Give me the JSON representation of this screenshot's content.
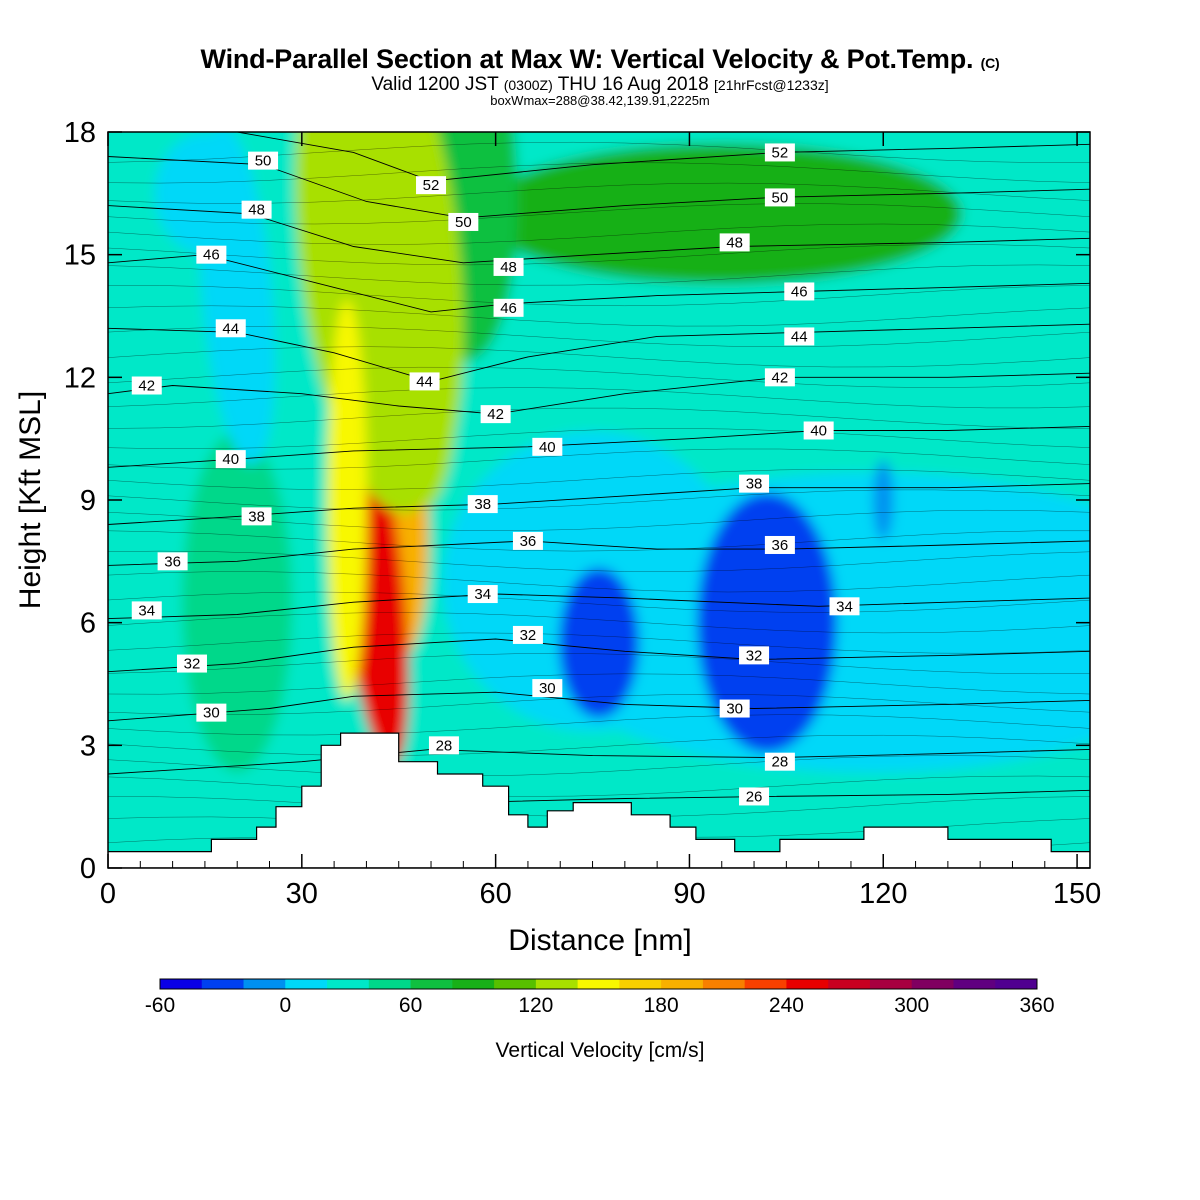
{
  "header": {
    "title": "Wind-Parallel Section at Max W: Vertical Velocity & Pot.Temp.",
    "copyright": "(C)",
    "valid_prefix": "Valid 1200 JST",
    "valid_z": "(0300Z)",
    "valid_date": "THU 16 Aug 2018",
    "valid_fcst": "[21hrFcst@1233z]",
    "box_info": "boxWmax=288@38.42,139.91,2225m"
  },
  "chart_data": {
    "type": "heatmap",
    "xlabel": "Distance [nm]",
    "ylabel": "Height [Kft MSL]",
    "xlim": [
      0,
      152
    ],
    "ylim": [
      0,
      18
    ],
    "x_ticks": [
      0,
      30,
      60,
      90,
      120,
      150
    ],
    "y_ticks": [
      0,
      3,
      6,
      9,
      12,
      15,
      18
    ],
    "colorbar": {
      "label": "Vertical Velocity [cm/s]",
      "min": -60,
      "max": 360,
      "step": 20,
      "tick_labels": [
        "-60",
        "0",
        "60",
        "120",
        "180",
        "240",
        "300",
        "360"
      ],
      "tick_values": [
        -60,
        0,
        60,
        120,
        180,
        240,
        300,
        360
      ],
      "colors": [
        "#0a00e6",
        "#0040f0",
        "#0090f0",
        "#00d8f8",
        "#00e8c8",
        "#00d88a",
        "#10c040",
        "#18b018",
        "#58c000",
        "#a8e000",
        "#f8f800",
        "#f8d000",
        "#f8b000",
        "#f88000",
        "#f84000",
        "#e80000",
        "#c80020",
        "#a80040",
        "#800060",
        "#600080",
        "#500090"
      ]
    },
    "terrain": [
      [
        0,
        0.4
      ],
      [
        16,
        0.4
      ],
      [
        16,
        0.7
      ],
      [
        23,
        0.7
      ],
      [
        23,
        1.0
      ],
      [
        26,
        1.0
      ],
      [
        26,
        1.5
      ],
      [
        30,
        1.5
      ],
      [
        30,
        2.0
      ],
      [
        33,
        2.0
      ],
      [
        33,
        3.0
      ],
      [
        36,
        3.0
      ],
      [
        36,
        3.3
      ],
      [
        45,
        3.3
      ],
      [
        45,
        2.6
      ],
      [
        51,
        2.6
      ],
      [
        51,
        2.3
      ],
      [
        58,
        2.3
      ],
      [
        58,
        2.0
      ],
      [
        62,
        2.0
      ],
      [
        62,
        1.3
      ],
      [
        65,
        1.3
      ],
      [
        65,
        1.0
      ],
      [
        68,
        1.0
      ],
      [
        68,
        1.4
      ],
      [
        72,
        1.4
      ],
      [
        72,
        1.6
      ],
      [
        81,
        1.6
      ],
      [
        81,
        1.3
      ],
      [
        87,
        1.3
      ],
      [
        87,
        1.0
      ],
      [
        91,
        1.0
      ],
      [
        91,
        0.7
      ],
      [
        97,
        0.7
      ],
      [
        97,
        0.4
      ],
      [
        104,
        0.4
      ],
      [
        104,
        0.7
      ],
      [
        117,
        0.7
      ],
      [
        117,
        1.0
      ],
      [
        130,
        1.0
      ],
      [
        130,
        0.7
      ],
      [
        146,
        0.7
      ],
      [
        146,
        0.4
      ],
      [
        152,
        0.4
      ]
    ],
    "theta_contours": [
      {
        "level": "26",
        "points": [
          [
            55,
            1.6
          ],
          [
            80,
            1.7
          ],
          [
            103,
            1.75
          ],
          [
            130,
            1.8
          ],
          [
            152,
            1.9
          ]
        ],
        "label_at": [
          100,
          1.75
        ]
      },
      {
        "level": "28",
        "points": [
          [
            0,
            2.3
          ],
          [
            30,
            2.6
          ],
          [
            50,
            2.9
          ],
          [
            75,
            2.75
          ],
          [
            103,
            2.7
          ],
          [
            130,
            2.8
          ],
          [
            152,
            2.9
          ]
        ],
        "label_at": [
          52,
          3.0
        ]
      },
      {
        "level": "30",
        "points": [
          [
            0,
            3.6
          ],
          [
            25,
            3.9
          ],
          [
            38,
            4.2
          ],
          [
            60,
            4.3
          ],
          [
            80,
            4.0
          ],
          [
            100,
            3.9
          ],
          [
            130,
            4.0
          ],
          [
            152,
            4.1
          ]
        ],
        "label_at": [
          68,
          4.4
        ]
      },
      {
        "level": "32",
        "points": [
          [
            0,
            4.8
          ],
          [
            20,
            5.0
          ],
          [
            38,
            5.4
          ],
          [
            60,
            5.6
          ],
          [
            80,
            5.3
          ],
          [
            100,
            5.1
          ],
          [
            130,
            5.2
          ],
          [
            152,
            5.3
          ]
        ],
        "label_at": [
          65,
          5.7
        ]
      },
      {
        "level": "34",
        "points": [
          [
            0,
            6.1
          ],
          [
            20,
            6.2
          ],
          [
            38,
            6.5
          ],
          [
            60,
            6.7
          ],
          [
            80,
            6.6
          ],
          [
            110,
            6.4
          ],
          [
            130,
            6.5
          ],
          [
            152,
            6.6
          ]
        ],
        "label_at": [
          58,
          6.7
        ]
      },
      {
        "level": "36",
        "points": [
          [
            0,
            7.4
          ],
          [
            20,
            7.5
          ],
          [
            38,
            7.8
          ],
          [
            65,
            8.0
          ],
          [
            85,
            7.8
          ],
          [
            105,
            7.8
          ],
          [
            130,
            7.9
          ],
          [
            152,
            8.0
          ]
        ],
        "label_at": [
          65,
          8.0
        ]
      },
      {
        "level": "38",
        "points": [
          [
            0,
            8.4
          ],
          [
            20,
            8.6
          ],
          [
            38,
            8.8
          ],
          [
            60,
            8.9
          ],
          [
            80,
            9.1
          ],
          [
            100,
            9.3
          ],
          [
            130,
            9.3
          ],
          [
            152,
            9.4
          ]
        ],
        "label_at": [
          58,
          8.9
        ]
      },
      {
        "level": "40",
        "points": [
          [
            0,
            9.8
          ],
          [
            20,
            10.0
          ],
          [
            38,
            10.2
          ],
          [
            65,
            10.3
          ],
          [
            90,
            10.5
          ],
          [
            110,
            10.7
          ],
          [
            130,
            10.7
          ],
          [
            152,
            10.8
          ]
        ],
        "label_at": [
          68,
          10.3
        ]
      },
      {
        "level": "42",
        "points": [
          [
            0,
            11.6
          ],
          [
            10,
            11.8
          ],
          [
            30,
            11.6
          ],
          [
            45,
            11.3
          ],
          [
            60,
            11.1
          ],
          [
            80,
            11.6
          ],
          [
            104,
            12.0
          ],
          [
            130,
            12.0
          ],
          [
            152,
            12.1
          ]
        ],
        "label_at": [
          60,
          11.1
        ]
      },
      {
        "level": "44",
        "points": [
          [
            0,
            13.2
          ],
          [
            20,
            13.1
          ],
          [
            35,
            12.6
          ],
          [
            50,
            11.9
          ],
          [
            65,
            12.5
          ],
          [
            85,
            13.0
          ],
          [
            107,
            13.1
          ],
          [
            130,
            13.2
          ],
          [
            152,
            13.3
          ]
        ],
        "label_at": [
          49,
          11.9
        ]
      },
      {
        "level": "46",
        "points": [
          [
            0,
            14.8
          ],
          [
            15,
            15.0
          ],
          [
            35,
            14.2
          ],
          [
            50,
            13.6
          ],
          [
            62,
            13.8
          ],
          [
            85,
            14.0
          ],
          [
            107,
            14.1
          ],
          [
            130,
            14.2
          ],
          [
            152,
            14.3
          ]
        ],
        "label_at": [
          62,
          13.7
        ]
      },
      {
        "level": "48",
        "points": [
          [
            0,
            16.2
          ],
          [
            22,
            16.0
          ],
          [
            38,
            15.2
          ],
          [
            55,
            14.8
          ],
          [
            75,
            15.0
          ],
          [
            97,
            15.2
          ],
          [
            130,
            15.3
          ],
          [
            152,
            15.4
          ]
        ],
        "label_at": [
          62,
          14.7
        ]
      },
      {
        "level": "50",
        "points": [
          [
            0,
            17.4
          ],
          [
            24,
            17.2
          ],
          [
            40,
            16.3
          ],
          [
            55,
            15.9
          ],
          [
            80,
            16.2
          ],
          [
            103,
            16.4
          ],
          [
            130,
            16.5
          ],
          [
            152,
            16.6
          ]
        ],
        "label_at": [
          55,
          15.8
        ]
      },
      {
        "level": "52",
        "points": [
          [
            20,
            18.0
          ],
          [
            38,
            17.5
          ],
          [
            50,
            16.8
          ],
          [
            75,
            17.2
          ],
          [
            104,
            17.5
          ],
          [
            130,
            17.6
          ],
          [
            152,
            17.7
          ]
        ],
        "label_at": [
          50,
          16.7
        ]
      }
    ],
    "extra_theta_labels": [
      {
        "level": "50",
        "at": [
          24,
          17.3
        ]
      },
      {
        "level": "48",
        "at": [
          23,
          16.1
        ]
      },
      {
        "level": "46",
        "at": [
          16,
          15.0
        ]
      },
      {
        "level": "44",
        "at": [
          19,
          13.2
        ]
      },
      {
        "level": "42",
        "at": [
          6,
          11.8
        ]
      },
      {
        "level": "40",
        "at": [
          19,
          10.0
        ]
      },
      {
        "level": "38",
        "at": [
          23,
          8.6
        ]
      },
      {
        "level": "36",
        "at": [
          10,
          7.5
        ]
      },
      {
        "level": "34",
        "at": [
          6,
          6.3
        ]
      },
      {
        "level": "32",
        "at": [
          13,
          5.0
        ]
      },
      {
        "level": "30",
        "at": [
          16,
          3.8
        ]
      },
      {
        "level": "52",
        "at": [
          104,
          17.5
        ]
      },
      {
        "level": "50",
        "at": [
          104,
          16.4
        ]
      },
      {
        "level": "48",
        "at": [
          97,
          15.3
        ]
      },
      {
        "level": "46",
        "at": [
          107,
          14.1
        ]
      },
      {
        "level": "44",
        "at": [
          107,
          13.0
        ]
      },
      {
        "level": "42",
        "at": [
          104,
          12.0
        ]
      },
      {
        "level": "40",
        "at": [
          110,
          10.7
        ]
      },
      {
        "level": "38",
        "at": [
          100,
          9.4
        ]
      },
      {
        "level": "36",
        "at": [
          104,
          7.9
        ]
      },
      {
        "level": "34",
        "at": [
          114,
          6.4
        ]
      },
      {
        "level": "32",
        "at": [
          100,
          5.2
        ]
      },
      {
        "level": "30",
        "at": [
          97,
          3.9
        ]
      },
      {
        "level": "28",
        "at": [
          104,
          2.6
        ]
      }
    ]
  }
}
